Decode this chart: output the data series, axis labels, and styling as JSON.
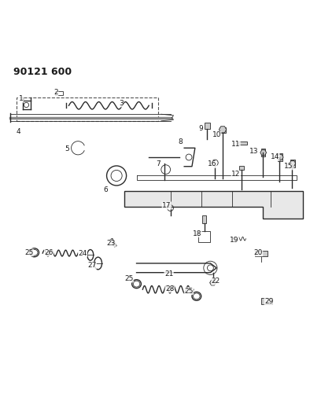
{
  "title": "90121 600",
  "bg_color": "#ffffff",
  "line_color": "#2a2a2a",
  "label_color": "#1a1a1a",
  "fig_width": 3.94,
  "fig_height": 5.33
}
